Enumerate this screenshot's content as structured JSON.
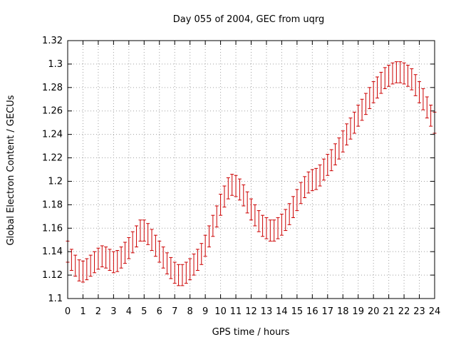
{
  "chart_data": {
    "type": "scatter",
    "title": "Day 055 of 2004, GEC from uqrg",
    "xlabel": "GPS time / hours",
    "ylabel": "Global Electron Content / GECUs",
    "xlim": [
      0,
      24
    ],
    "ylim": [
      1.1,
      1.32
    ],
    "grid": true,
    "x_ticks": [
      "0",
      "1",
      "2",
      "3",
      "4",
      "5",
      "6",
      "7",
      "8",
      "9",
      "10",
      "11",
      "12",
      "13",
      "14",
      "15",
      "16",
      "17",
      "18",
      "19",
      "20",
      "21",
      "22",
      "23",
      "24"
    ],
    "y_ticks": [
      "1.1",
      "1.12",
      "1.14",
      "1.16",
      "1.18",
      "1.2",
      "1.22",
      "1.24",
      "1.26",
      "1.28",
      "1.3",
      "1.32"
    ],
    "series": [
      {
        "name": "GEC",
        "color": "#cc0000",
        "error": 0.009,
        "x": [
          0.0,
          0.25,
          0.5,
          0.75,
          1.0,
          1.25,
          1.5,
          1.75,
          2.0,
          2.25,
          2.5,
          2.75,
          3.0,
          3.25,
          3.5,
          3.75,
          4.0,
          4.25,
          4.5,
          4.75,
          5.0,
          5.25,
          5.5,
          5.75,
          6.0,
          6.25,
          6.5,
          6.75,
          7.0,
          7.25,
          7.5,
          7.75,
          8.0,
          8.25,
          8.5,
          8.75,
          9.0,
          9.25,
          9.5,
          9.75,
          10.0,
          10.25,
          10.5,
          10.75,
          11.0,
          11.25,
          11.5,
          11.75,
          12.0,
          12.25,
          12.5,
          12.75,
          13.0,
          13.25,
          13.5,
          13.75,
          14.0,
          14.25,
          14.5,
          14.75,
          15.0,
          15.25,
          15.5,
          15.75,
          16.0,
          16.25,
          16.5,
          16.75,
          17.0,
          17.25,
          17.5,
          17.75,
          18.0,
          18.25,
          18.5,
          18.75,
          19.0,
          19.25,
          19.5,
          19.75,
          20.0,
          20.25,
          20.5,
          20.75,
          21.0,
          21.25,
          21.5,
          21.75,
          22.0,
          22.25,
          22.5,
          22.75,
          23.0,
          23.25,
          23.5,
          23.75,
          24.0
        ],
        "values": [
          1.14,
          1.133,
          1.128,
          1.124,
          1.123,
          1.125,
          1.128,
          1.131,
          1.134,
          1.136,
          1.135,
          1.133,
          1.131,
          1.132,
          1.135,
          1.139,
          1.143,
          1.148,
          1.153,
          1.158,
          1.158,
          1.155,
          1.15,
          1.145,
          1.14,
          1.135,
          1.13,
          1.126,
          1.122,
          1.12,
          1.12,
          1.122,
          1.125,
          1.129,
          1.133,
          1.138,
          1.145,
          1.153,
          1.162,
          1.17,
          1.18,
          1.187,
          1.194,
          1.197,
          1.196,
          1.193,
          1.188,
          1.182,
          1.176,
          1.171,
          1.166,
          1.162,
          1.16,
          1.158,
          1.158,
          1.16,
          1.163,
          1.167,
          1.172,
          1.178,
          1.184,
          1.19,
          1.195,
          1.199,
          1.201,
          1.202,
          1.205,
          1.21,
          1.214,
          1.218,
          1.223,
          1.228,
          1.234,
          1.24,
          1.245,
          1.25,
          1.256,
          1.261,
          1.266,
          1.271,
          1.276,
          1.28,
          1.284,
          1.288,
          1.29,
          1.292,
          1.293,
          1.293,
          1.292,
          1.29,
          1.287,
          1.282,
          1.276,
          1.27,
          1.263,
          1.256,
          1.25
        ]
      }
    ]
  }
}
